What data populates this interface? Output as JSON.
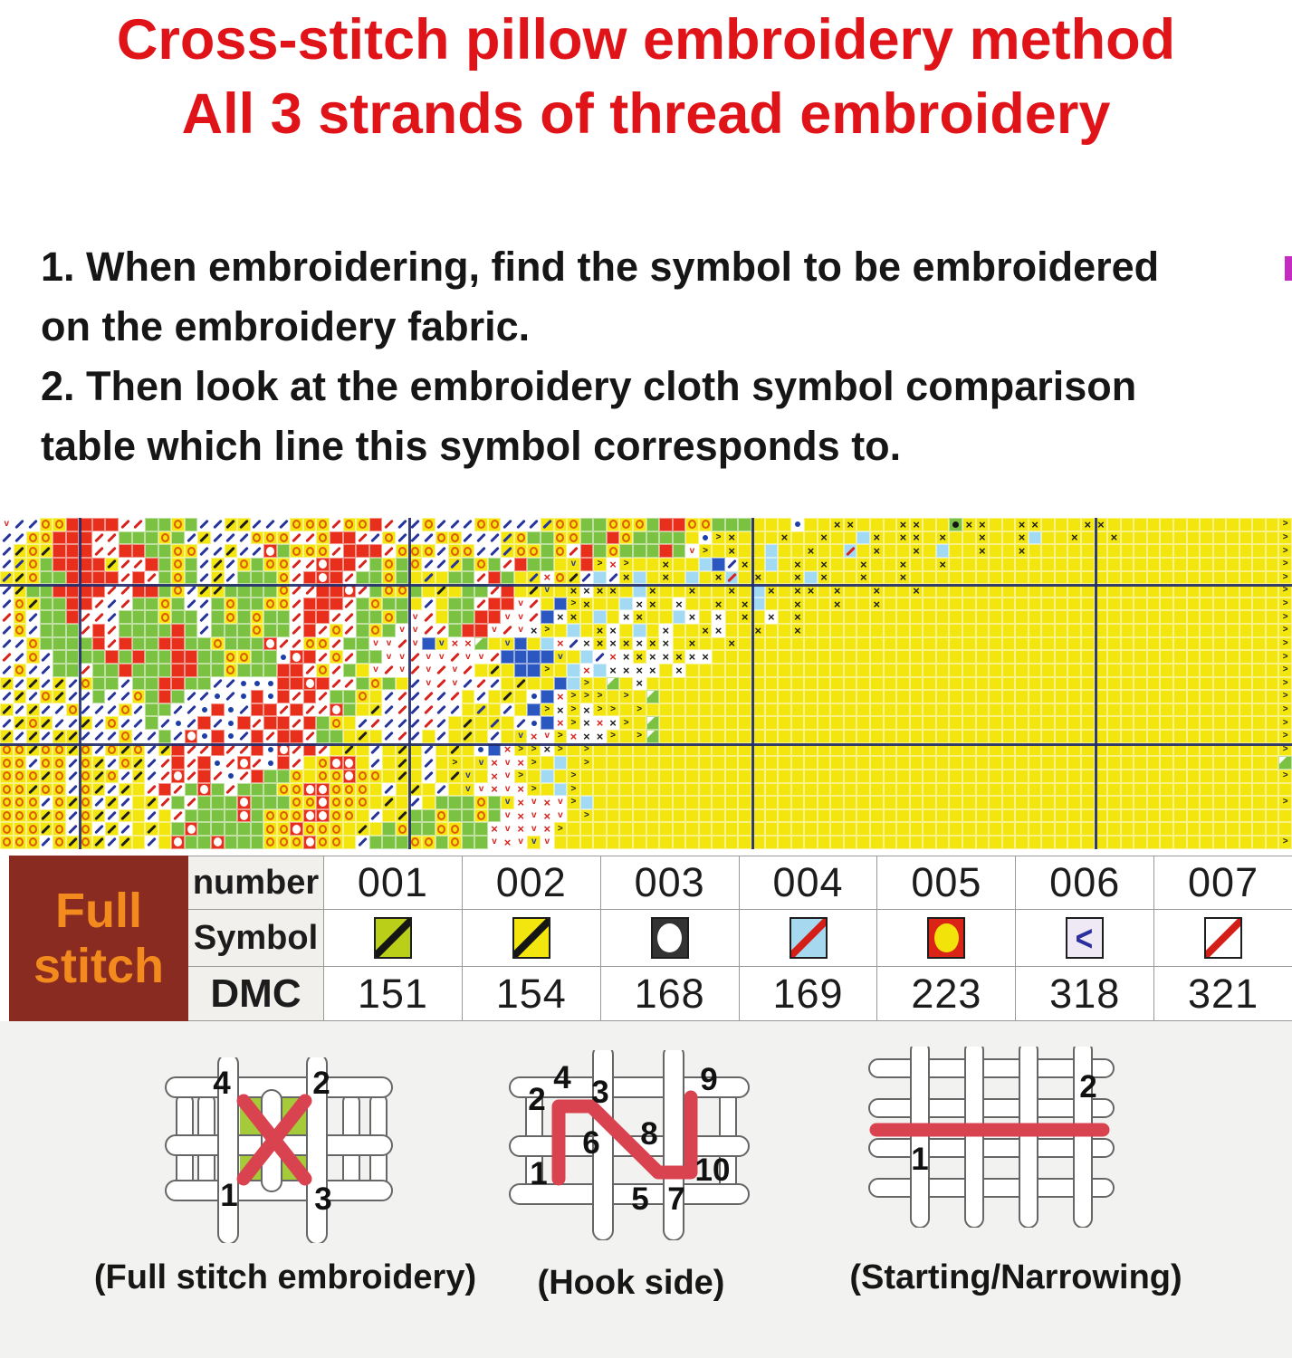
{
  "title": {
    "line1": "Cross-stitch pillow embroidery method",
    "line2": "All 3 strands of thread embroidery"
  },
  "instructions": {
    "line1": "1. When embroidering, find the symbol to be embroidered",
    "line2": "on the embroidery fabric.",
    "line3": "2. Then look at the embroidery cloth symbol comparison",
    "line4": "table which line this symbol corresponds to."
  },
  "colors": {
    "title_red": "#e01319",
    "chart_yellow": "#f3e50e",
    "chart_green": "#7cc242",
    "chart_red": "#e72f1c",
    "chart_blue": "#2b57c0",
    "chart_lightblue": "#a2daf3",
    "navy_slash": "#27359b",
    "red_slash": "#d8231d",
    "grid_navy": "#1e2a6d",
    "table_dark": "#8a2b21",
    "table_orange": "#f28a1e",
    "thread_red": "#d94350",
    "bottom_gray": "#f2f2f0",
    "edge_mark_magenta": "#c52bc0"
  },
  "chart_pattern": {
    "columns": 98,
    "rows": 25,
    "cell_types": {
      "y": "yellow",
      "Y": "yellow-orange-ring",
      "k": "yellow-black-slash",
      "K": "yellow-black-x",
      "d": "yellow-navy-slash",
      "e": "yellow-red-slash",
      "u": "yellow-navy-v",
      "h": "yellow-black-chevron",
      "g": "green",
      "G": "green-white-corner",
      "D": "green-black-dot",
      "r": "red",
      "O": "red-white-circle",
      "w": "white-navy-slash",
      "s": "white-red-slash",
      "v": "white-red-v",
      "b": "white-blue-dot",
      "x": "white-black-x",
      "m": "white-red-x",
      "c": "light-blue",
      "C": "light-blue-red-slash",
      "B": "blue"
    },
    "major_gridlines": {
      "vertical_cols": [
        6,
        31,
        57,
        83
      ],
      "horizontal_rows": [
        5,
        17
      ]
    },
    "row_rle": [
      "1v2w2Y4r2s2g1Y1g2w2k3w3Y1s2Y1r1s2w1Y3w2Y3w1d2Y2g3Y1g2r2Y3g3y1b2y2K3y2K2y1D2K2y2K3y2K4y1h",
      "2w2Y3r2s1g2g1Y1g1w1k3w3Y2s1Y2r1s1w1Y3w2Y3w1d1Y2g2Y2g1r1Y4g1y1b1h1K3y1K2y1K2y1c1K1y2K1y1K2y1K2y1K1c2y1K2y1K1y1h",
      "1w1k1Y1k3r2s2r2g2Y2w1k2w1O1g3Y1s3r1s3Y1w2Y2w1d2Y1g1Y1s1r1g1Y3g1r1g1v1h1y1K2y1c2y1K2y1C1y1K2y1K1y1c2y1K2y1K1y1h",
      "1w1d1Y1g4r1k2s1r1g1Y1g1w1k1w1Y1g2Y2s1O2r1s1g1Y1g1Y2w1d1g1Y1g1s1r2g1y1u1r1h1m1h2y1K2y1c1B1w1K1y1c1y1K1y1K2y1K2y1K2y1K1y1h",
      "1d1k1Y2g4r1s1r1s1g1Y1g1w1k1w3g1Y1s1r1O1r1s2g1Y1g1y1d1y2g1s1r1g1y1d1m1Y1k1w1c1w1K1c1y1K1y1c1y1K1C1y1K2y1K1c1K2y1K2y1K1y1h",
      "1w1k2g4r2s2r1g1Y1w2k4g1Y2s2r1O1s1g2Y1g1y1k1y2g1s1r1y1k1u1y1K1x2K1y1c1K2y1K2y1K1y1c1K1y2K1y1K2y1K2y1K1y1h",
      "1w1Y1k2g2r1s1w1s2g1Y1g2w1g1Y2g2Y1s3r1s1g1Y2g1y1w1y2g1s2r1v1s1y1B1h1K2y1c1x1K1y1x2y1K1y1K1c2y1K2y1K2y1K1y1h",
      "1s1Y1w2g1r2s1w1g2g1Y2g1w1g1Y1g1Y2g1s2r2s2g1Y1g1v1s1y2g2r2v1s1B1x1K1y1c1y1x1K2y1c1x1y1x1y1K1y1x1y1K2y1h",
      "1w1Y1w3g1s1r1s4g1r1g1w3g1Y2g1s1r1s1Y1s1g1Y1g2v2s1g2r1v1s1v1x1h1y1c1y1K1x1y1c1y1x2y1K1x2y1K2y1K1y1h",
      "2w1Y4g1r1s1r2g2r2g1Y3g1O2s2Y1s2g2v1s1v1B1u2m1G1y1u1B1y1c1m1w1x1K1x1K1x1K1x1y1K2y1K1y1h",
      "1s1w1Y1w4g1r1g1r2g2r2g2Y2g1b1O1r1s1Y1s2g2v1s2v1s2v1s2B2B1u1y1c1w1m1x1K2x1K2x1h",
      "1w1Y2w2g1s2g1r3g2r2g1Y3g2r1s1Y1s1g1y1v1s1v1s1v1s1v1s1y1k1y2B1h1y1c1m1c1x3x1y1x1h",
      "1k1w1k1w1k1w1Y2g1w2g2r2g2w1b2b2r1O1r2s1g1Y1g1y1w1v1s1v1w1s1w1y1k2y1B1c1h1y1G1y1x1y1h",
      "1w1k1w1Y1k2w1g2w1Y1g1r1g2w1b1w1b1r1b1r1s1r1s2g1Y1y1w1s1w1s1w1s1y1w1y1k1y1b1B1m3h1y1h1y1G1y1h",
      "1k1w1k2w1Y1w2w1Y1w2g2w1b1r1b1w2r1s1r2s1O1g1y1k1w1s1w1s2w1y1d1y1w1y1B1h1x1h1x2h1y1h1y1h",
      "1w1k1Y1k2w1k1w1Y2w1g1w1b1w1r1w1b1r1s2r1s1r1g1Y1y1w1s3w1s1w1y1k1y1d1y1w1b1B1m1h1x1m1x1h1y1G1y1h",
      "1k1w1k1w2k3w1Y2w1g1w1O1b1r1b1w1r1s2r1s2g1y1k1y1w1s1w1y1w1y1k1y1w1y1u1m1v1h1m2x1h1y1h1G1y1h",
      "2Y1k2Y1k1Y1w1Y1k1Y1w1k1r2s1r2s1r1b1O1s1r1s1y1k1y1w1y1k1y1w1y1k1y1b1B1m2h1x1h1y1h1y1h",
      "2Y1w2Y1w1Y1k1w1Y1k1w1s1r1s1r1b1s1O1s1b1r1s1y1Y2O1y1w1y1k1y1w1y1h1y1u1m1v1m1h1y1c1y1h1G",
      "3Y1k1Y1w1Y1k1Y1w1k1w1s1O1s1r1s1b1s1r2g1Y1y2Y1O2Y1y1k1y1w1y1k1u1y1m1v1h1y1c1y1h1y1h",
      "2Y1k2Y1w1Y1k1w1k1y1s1r1s1g1O1g1s3g2Y2O3Y1y1w1y1k1y1w1y1u1v1m1v1m1h1y1c1h1y",
      "3Y1w1Y1k1Y1w1k1w1y1k1s1g1s3g1O3g2Y1O3Y1y1k1y1w1y3g1Y1g1u1m1v1m1v1h1c1y1h",
      "3Y1k1Y1w1Y1k1w1k1y1w1y1s4g1O1g3Y2O2Y1y1w1y1k2g1Y2g1Y1g1v1m1v1m1v1y1h1y",
      "3Y1k1Y1w1Y1w1k1w1y1k1y1g1O5g2Y1O3Y1y1k1y1g1Y2g2Y2g1m1v1m1v1m1h1y",
      "3Y1w1Y1k1Y1k1w1k1y1w1y1O2g1O3g3Y1O2Y1y1w3g2Y1g1Y2g1v1m1v1u1v1y1h"
    ]
  },
  "symbol_table": {
    "group_lines": [
      "Full",
      "stitch"
    ],
    "row_labels": [
      "number",
      "Symbol",
      "DMC"
    ],
    "columns": [
      {
        "number": "001",
        "sym": "s1",
        "symbol_desc": "green-yellow square with black slash",
        "dmc": "151"
      },
      {
        "number": "002",
        "sym": "s2",
        "symbol_desc": "yellow square with black slash",
        "dmc": "154"
      },
      {
        "number": "003",
        "sym": "s3",
        "symbol_desc": "black square with white circle",
        "dmc": "168"
      },
      {
        "number": "004",
        "sym": "s4",
        "symbol_desc": "light blue square with red slash",
        "dmc": "169"
      },
      {
        "number": "005",
        "sym": "s5",
        "symbol_desc": "red square with yellow circle",
        "dmc": "223"
      },
      {
        "number": "006",
        "sym": "s6",
        "symbol_desc": "white square with blue chevron",
        "dmc": "318"
      },
      {
        "number": "007",
        "sym": "s7",
        "symbol_desc": "white square with red slash",
        "dmc": "321"
      }
    ]
  },
  "diagrams": [
    {
      "caption": "(Full stitch embroidery)",
      "numbers": [
        "4",
        "2",
        "1",
        "3"
      ]
    },
    {
      "caption": "(Hook side)",
      "numbers": [
        "2",
        "4",
        "3",
        "9",
        "6",
        "8",
        "1",
        "5",
        "7",
        "10"
      ]
    },
    {
      "caption": "(Starting/Narrowing)",
      "numbers": [
        "1",
        "2"
      ]
    }
  ]
}
